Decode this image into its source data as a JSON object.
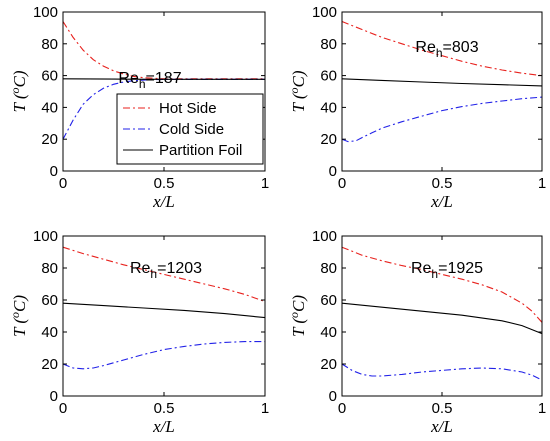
{
  "chart_data": [
    {
      "type": "line",
      "annotation": {
        "base": "Re",
        "sub": "h",
        "value": "=187"
      },
      "xlabel": "x/L",
      "ylabel": "T (oC)",
      "xlim": [
        0,
        1
      ],
      "ylim": [
        0,
        100
      ],
      "xticks": [
        "0",
        "0.5",
        "1"
      ],
      "yticks": [
        "0",
        "20",
        "40",
        "60",
        "80",
        "100"
      ],
      "grid": false,
      "legend": {
        "placement": "middle-right",
        "entries": [
          "Hot Side",
          "Cold Side",
          "Partition Foil"
        ]
      },
      "series": [
        {
          "name": "Hot Side",
          "color": "#e8221e",
          "style": "dashdot",
          "x": [
            0,
            0.05,
            0.1,
            0.15,
            0.2,
            0.25,
            0.3,
            0.35,
            0.4,
            0.45,
            0.5,
            0.6,
            0.7,
            0.8,
            0.9,
            1.0
          ],
          "y": [
            94,
            84,
            76,
            70,
            66,
            63,
            61,
            59.5,
            58.7,
            58.3,
            58,
            58,
            58,
            58,
            58,
            58
          ]
        },
        {
          "name": "Cold Side",
          "color": "#2222e8",
          "style": "dashdot",
          "x": [
            0,
            0.05,
            0.1,
            0.15,
            0.2,
            0.25,
            0.3,
            0.35,
            0.4,
            0.45,
            0.5,
            0.6,
            0.7,
            0.8,
            0.9,
            1.0
          ],
          "y": [
            20,
            32,
            42,
            48,
            52,
            54.5,
            56,
            56.8,
            57.2,
            57.5,
            57.6,
            57.7,
            57.7,
            57.7,
            57.7,
            57.7
          ]
        },
        {
          "name": "Partition Foil",
          "color": "#000000",
          "style": "solid",
          "x": [
            0,
            0.25,
            0.5,
            0.75,
            1.0
          ],
          "y": [
            58,
            57.8,
            57.7,
            57.7,
            57.7
          ]
        }
      ]
    },
    {
      "type": "line",
      "annotation": {
        "base": "Re",
        "sub": "h",
        "value": "=803"
      },
      "xlabel": "x/L",
      "ylabel": "T (oC)",
      "xlim": [
        0,
        1
      ],
      "ylim": [
        0,
        100
      ],
      "xticks": [
        "0",
        "0.5",
        "1"
      ],
      "yticks": [
        "0",
        "20",
        "40",
        "60",
        "80",
        "100"
      ],
      "grid": false,
      "series": [
        {
          "name": "Hot Side",
          "color": "#e8221e",
          "style": "dashdot",
          "x": [
            0,
            0.1,
            0.2,
            0.3,
            0.4,
            0.5,
            0.6,
            0.7,
            0.8,
            0.9,
            1.0
          ],
          "y": [
            94,
            89,
            84,
            80,
            76,
            72.5,
            69,
            66,
            63.5,
            61.5,
            60
          ]
        },
        {
          "name": "Cold Side",
          "color": "#2222e8",
          "style": "dashdot",
          "x": [
            0,
            0.03,
            0.07,
            0.1,
            0.15,
            0.2,
            0.3,
            0.4,
            0.5,
            0.6,
            0.7,
            0.8,
            0.9,
            1.0
          ],
          "y": [
            20,
            18.5,
            19,
            21,
            24,
            27,
            31,
            34.5,
            38,
            40.5,
            42.5,
            44,
            45.5,
            46.5
          ]
        },
        {
          "name": "Partition Foil",
          "color": "#000000",
          "style": "solid",
          "x": [
            0,
            0.2,
            0.4,
            0.6,
            0.8,
            1.0
          ],
          "y": [
            58,
            57,
            56,
            55,
            54.3,
            53.5
          ]
        }
      ]
    },
    {
      "type": "line",
      "annotation": {
        "base": "Re",
        "sub": "h",
        "value": "=1203"
      },
      "xlabel": "x/L",
      "ylabel": "T (oC)",
      "xlim": [
        0,
        1
      ],
      "ylim": [
        0,
        100
      ],
      "xticks": [
        "0",
        "0.5",
        "1"
      ],
      "yticks": [
        "0",
        "20",
        "40",
        "60",
        "80",
        "100"
      ],
      "grid": false,
      "series": [
        {
          "name": "Hot Side",
          "color": "#e8221e",
          "style": "dashdot",
          "x": [
            0,
            0.1,
            0.2,
            0.3,
            0.4,
            0.5,
            0.6,
            0.7,
            0.8,
            0.9,
            1.0
          ],
          "y": [
            93,
            89,
            85.5,
            82,
            79,
            76,
            73,
            70,
            67,
            63.5,
            59
          ]
        },
        {
          "name": "Cold Side",
          "color": "#2222e8",
          "style": "dashdot",
          "x": [
            0,
            0.05,
            0.1,
            0.15,
            0.2,
            0.3,
            0.4,
            0.5,
            0.6,
            0.7,
            0.8,
            0.9,
            1.0
          ],
          "y": [
            20,
            17.5,
            17,
            17.5,
            19,
            22.5,
            26,
            29,
            31,
            32.5,
            33.5,
            34,
            34
          ]
        },
        {
          "name": "Partition Foil",
          "color": "#000000",
          "style": "solid",
          "x": [
            0,
            0.2,
            0.4,
            0.6,
            0.8,
            1.0
          ],
          "y": [
            58,
            56.5,
            55,
            53.5,
            51.5,
            49
          ]
        }
      ]
    },
    {
      "type": "line",
      "annotation": {
        "base": "Re",
        "sub": "h",
        "value": "=1925"
      },
      "xlabel": "x/L",
      "ylabel": "T (oC)",
      "xlim": [
        0,
        1
      ],
      "ylim": [
        0,
        100
      ],
      "xticks": [
        "0",
        "0.5",
        "1"
      ],
      "yticks": [
        "0",
        "20",
        "40",
        "60",
        "80",
        "100"
      ],
      "grid": false,
      "series": [
        {
          "name": "Hot Side",
          "color": "#e8221e",
          "style": "dashdot",
          "x": [
            0,
            0.1,
            0.2,
            0.3,
            0.4,
            0.5,
            0.6,
            0.7,
            0.8,
            0.9,
            0.95,
            1.0
          ],
          "y": [
            93,
            88,
            84.5,
            81.5,
            79,
            76,
            73,
            69.5,
            65,
            58,
            53,
            46
          ]
        },
        {
          "name": "Cold Side",
          "color": "#2222e8",
          "style": "dashdot",
          "x": [
            0,
            0.05,
            0.1,
            0.15,
            0.2,
            0.3,
            0.4,
            0.5,
            0.6,
            0.7,
            0.8,
            0.9,
            0.95,
            1.0
          ],
          "y": [
            20,
            16,
            13.5,
            12.5,
            12.5,
            13.5,
            15,
            16,
            17,
            17.5,
            17,
            15,
            13,
            10
          ]
        },
        {
          "name": "Partition Foil",
          "color": "#000000",
          "style": "solid",
          "x": [
            0,
            0.2,
            0.4,
            0.6,
            0.8,
            0.9,
            1.0
          ],
          "y": [
            58,
            55.5,
            53,
            50.5,
            47,
            44,
            39
          ]
        }
      ]
    }
  ]
}
